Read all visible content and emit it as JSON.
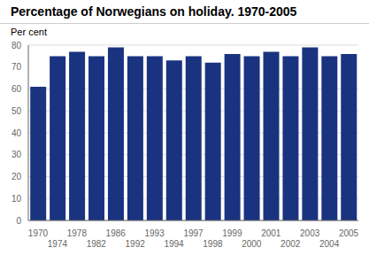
{
  "chart_data": {
    "type": "bar",
    "title": "Percentage of Norwegians on holiday. 1970-2005",
    "ylabel": "Per cent",
    "categories": [
      "1970",
      "1974",
      "1978",
      "1982",
      "1986",
      "1992",
      "1993",
      "1994",
      "1997",
      "1998",
      "1999",
      "2000",
      "2001",
      "2002",
      "2003",
      "2004",
      "2005"
    ],
    "values": [
      61,
      75,
      77,
      75,
      79,
      75,
      75,
      73,
      75,
      72,
      76,
      75,
      77,
      75,
      79,
      75,
      76
    ],
    "color": "#1a3380",
    "ylim": [
      0,
      80
    ],
    "yticks": [
      0,
      10,
      20,
      30,
      40,
      50,
      60,
      70,
      80
    ],
    "grid": true
  }
}
